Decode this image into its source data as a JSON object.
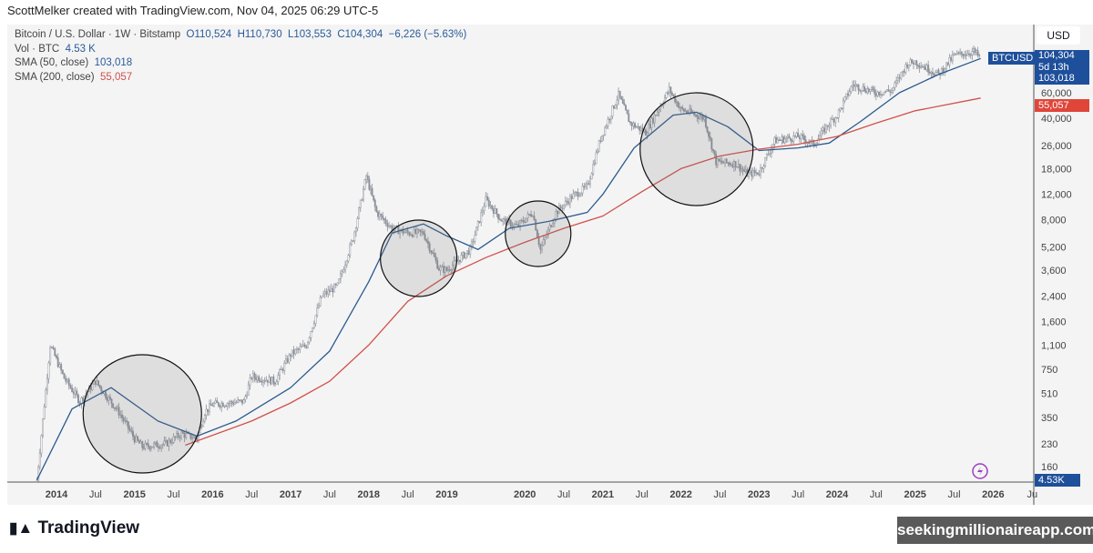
{
  "header": {
    "caption": "ScottMelker created with TradingView.com, Nov 04, 2025 06:29 UTC-5"
  },
  "legend": {
    "symbol": "Bitcoin / U.S. Dollar · 1W · Bitstamp",
    "open": "O110,524",
    "high": "H110,730",
    "low": "L103,553",
    "close": "C104,304",
    "change": "−6,226 (−5.63%)",
    "vol_label": "Vol · BTC",
    "vol_value": "4.53 K",
    "sma50_label": "SMA (50, close)",
    "sma50_value": "103,018",
    "sma200_label": "SMA (200, close)",
    "sma200_value": "55,057"
  },
  "price_scale": {
    "currency": "USD",
    "symbol_tag": "BTCUSD",
    "last_price": "104,304",
    "countdown": "5d 13h",
    "sma50": "103,018",
    "sma200": "55,057",
    "volume": "4.53K"
  },
  "colors": {
    "sma50": "#2b5a8f",
    "sma200": "#d0514a",
    "candle": "#8d929b",
    "label_blue": "#1e4f9a",
    "label_red": "#e0453a"
  },
  "footer": {
    "logo": "TradingView",
    "watermark": "seekingmillionaireapp.com"
  },
  "chart_data": {
    "type": "candlestick",
    "y_scale": "log",
    "yticks": [
      "60,000",
      "40,000",
      "26,000",
      "18,000",
      "12,000",
      "8,000",
      "5,200",
      "3,600",
      "2,400",
      "1,600",
      "1,100",
      "750",
      "510",
      "350",
      "230",
      "160"
    ],
    "ytick_values": [
      60000,
      40000,
      26000,
      18000,
      12000,
      8000,
      5200,
      3600,
      2400,
      1600,
      1100,
      750,
      510,
      350,
      230,
      160
    ],
    "xticks": [
      {
        "label": "2014",
        "d": 2014
      },
      {
        "label": "Jul",
        "d": 2014.5
      },
      {
        "label": "2015",
        "d": 2015
      },
      {
        "label": "Jul",
        "d": 2015.5
      },
      {
        "label": "2016",
        "d": 2016
      },
      {
        "label": "Jul",
        "d": 2016.5
      },
      {
        "label": "2017",
        "d": 2017
      },
      {
        "label": "Jul",
        "d": 2017.5
      },
      {
        "label": "2018",
        "d": 2018
      },
      {
        "label": "Jul",
        "d": 2018.5
      },
      {
        "label": "2019",
        "d": 2019
      },
      {
        "label": "2020",
        "d": 2020
      },
      {
        "label": "Jul",
        "d": 2020.5
      },
      {
        "label": "2021",
        "d": 2021
      },
      {
        "label": "Jul",
        "d": 2021.5
      },
      {
        "label": "2022",
        "d": 2022
      },
      {
        "label": "Jul",
        "d": 2022.5
      },
      {
        "label": "2023",
        "d": 2023
      },
      {
        "label": "Jul",
        "d": 2023.5
      },
      {
        "label": "2024",
        "d": 2024
      },
      {
        "label": "Jul",
        "d": 2024.5
      },
      {
        "label": "2025",
        "d": 2025
      },
      {
        "label": "Jul",
        "d": 2025.5
      },
      {
        "label": "2026",
        "d": 2026
      },
      {
        "label": "Ju",
        "d": 2026.5
      }
    ],
    "price": [
      [
        2013.75,
        130
      ],
      [
        2013.92,
        1100
      ],
      [
        2014.1,
        650
      ],
      [
        2014.3,
        450
      ],
      [
        2014.5,
        620
      ],
      [
        2014.8,
        380
      ],
      [
        2015.0,
        250
      ],
      [
        2015.1,
        220
      ],
      [
        2015.4,
        230
      ],
      [
        2015.6,
        270
      ],
      [
        2015.8,
        250
      ],
      [
        2015.9,
        380
      ],
      [
        2016.0,
        430
      ],
      [
        2016.4,
        450
      ],
      [
        2016.5,
        670
      ],
      [
        2016.8,
        620
      ],
      [
        2017.0,
        950
      ],
      [
        2017.2,
        1100
      ],
      [
        2017.4,
        2400
      ],
      [
        2017.6,
        2800
      ],
      [
        2017.8,
        6000
      ],
      [
        2017.97,
        16000
      ],
      [
        2018.1,
        9000
      ],
      [
        2018.3,
        7000
      ],
      [
        2018.5,
        6500
      ],
      [
        2018.7,
        6500
      ],
      [
        2018.9,
        3700
      ],
      [
        2019.0,
        3600
      ],
      [
        2019.3,
        5000
      ],
      [
        2019.5,
        11000
      ],
      [
        2019.7,
        8000
      ],
      [
        2019.9,
        7200
      ],
      [
        2020.1,
        9000
      ],
      [
        2020.2,
        5000
      ],
      [
        2020.4,
        9000
      ],
      [
        2020.6,
        11500
      ],
      [
        2020.8,
        13500
      ],
      [
        2020.97,
        29000
      ],
      [
        2021.2,
        58000
      ],
      [
        2021.35,
        37000
      ],
      [
        2021.55,
        32000
      ],
      [
        2021.85,
        63000
      ],
      [
        2022.0,
        46000
      ],
      [
        2022.3,
        40000
      ],
      [
        2022.45,
        20000
      ],
      [
        2022.7,
        19500
      ],
      [
        2022.85,
        16500
      ],
      [
        2023.0,
        17000
      ],
      [
        2023.2,
        28000
      ],
      [
        2023.5,
        30000
      ],
      [
        2023.7,
        26500
      ],
      [
        2023.9,
        37000
      ],
      [
        2024.0,
        42000
      ],
      [
        2024.2,
        68000
      ],
      [
        2024.5,
        60000
      ],
      [
        2024.7,
        62000
      ],
      [
        2024.9,
        95000
      ],
      [
        2025.0,
        98000
      ],
      [
        2025.3,
        80000
      ],
      [
        2025.5,
        108000
      ],
      [
        2025.75,
        115000
      ],
      [
        2025.84,
        104304
      ]
    ],
    "series": [
      {
        "name": "SMA (50, close)",
        "color": "#2b5a8f",
        "points": [
          [
            2013.75,
            130
          ],
          [
            2014.2,
            400
          ],
          [
            2014.7,
            560
          ],
          [
            2015.3,
            330
          ],
          [
            2015.8,
            260
          ],
          [
            2016.3,
            330
          ],
          [
            2017.0,
            560
          ],
          [
            2017.5,
            1000
          ],
          [
            2018.0,
            3000
          ],
          [
            2018.3,
            6500
          ],
          [
            2018.7,
            7500
          ],
          [
            2019.0,
            6200
          ],
          [
            2019.4,
            5000
          ],
          [
            2019.8,
            7000
          ],
          [
            2020.3,
            7800
          ],
          [
            2020.8,
            9000
          ],
          [
            2021.0,
            12000
          ],
          [
            2021.4,
            25000
          ],
          [
            2021.9,
            42000
          ],
          [
            2022.2,
            44000
          ],
          [
            2022.6,
            35000
          ],
          [
            2023.0,
            24000
          ],
          [
            2023.5,
            25000
          ],
          [
            2023.9,
            27000
          ],
          [
            2024.3,
            38000
          ],
          [
            2024.8,
            60000
          ],
          [
            2025.3,
            80000
          ],
          [
            2025.84,
            103018
          ]
        ]
      },
      {
        "name": "SMA (200, close)",
        "color": "#d0514a",
        "points": [
          [
            2015.65,
            225
          ],
          [
            2016.5,
            330
          ],
          [
            2017.0,
            440
          ],
          [
            2017.5,
            620
          ],
          [
            2018.0,
            1100
          ],
          [
            2018.5,
            2200
          ],
          [
            2019.0,
            3300
          ],
          [
            2019.5,
            4400
          ],
          [
            2020.0,
            5600
          ],
          [
            2020.5,
            7000
          ],
          [
            2021.0,
            8500
          ],
          [
            2021.5,
            12500
          ],
          [
            2022.0,
            18000
          ],
          [
            2022.5,
            22000
          ],
          [
            2023.0,
            24500
          ],
          [
            2023.5,
            26500
          ],
          [
            2024.0,
            30000
          ],
          [
            2024.5,
            37000
          ],
          [
            2025.0,
            45000
          ],
          [
            2025.84,
            55057
          ]
        ]
      }
    ],
    "annotations": [
      {
        "type": "circle",
        "d": 2015.1,
        "price": 370
      },
      {
        "type": "circle",
        "d": 2018.64,
        "price": 4350
      },
      {
        "type": "circle",
        "d": 2020.17,
        "price": 6420
      },
      {
        "type": "circle",
        "d": 2022.2,
        "price": 24500
      }
    ]
  }
}
